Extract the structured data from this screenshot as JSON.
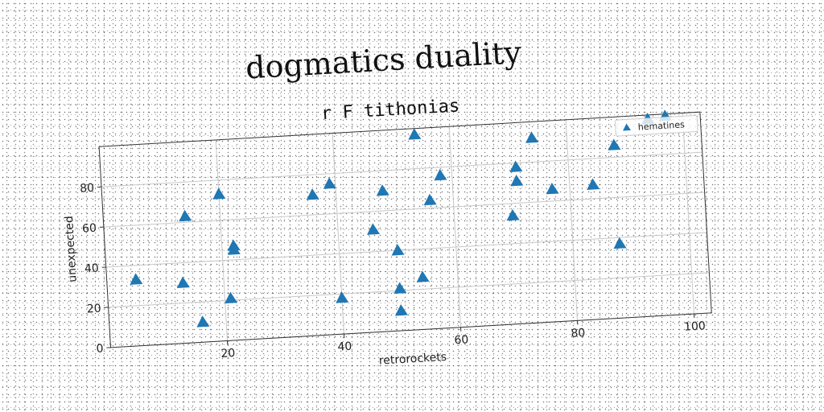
{
  "chart_data": {
    "type": "scatter",
    "title": "dogmatics duality",
    "subtitle": "r F tithonias",
    "xlabel": "retrorockets",
    "ylabel": "unexpected",
    "xlim": [
      0,
      103
    ],
    "ylim": [
      0,
      100
    ],
    "xticks": [
      20,
      40,
      60,
      80,
      100
    ],
    "yticks": [
      0,
      20,
      40,
      60,
      80
    ],
    "grid": true,
    "legend_position": "top-right",
    "series": [
      {
        "name": "hematines",
        "color": "#1f77b4",
        "marker": "triangle",
        "x": [
          5,
          13,
          14,
          16,
          20,
          21,
          22,
          22,
          36,
          39,
          40,
          46,
          48,
          50,
          50,
          50,
          54,
          54,
          56,
          58,
          70,
          71,
          71,
          74,
          77,
          84,
          88,
          88,
          94,
          97
        ],
        "y": [
          33,
          30,
          63,
          10,
          73,
          21,
          47,
          45,
          70,
          75,
          18,
          51,
          70,
          40,
          10,
          21,
          26,
          97,
          64,
          76,
          54,
          78,
          71,
          92,
          66,
          67,
          86,
          37,
          98,
          99
        ]
      }
    ]
  }
}
